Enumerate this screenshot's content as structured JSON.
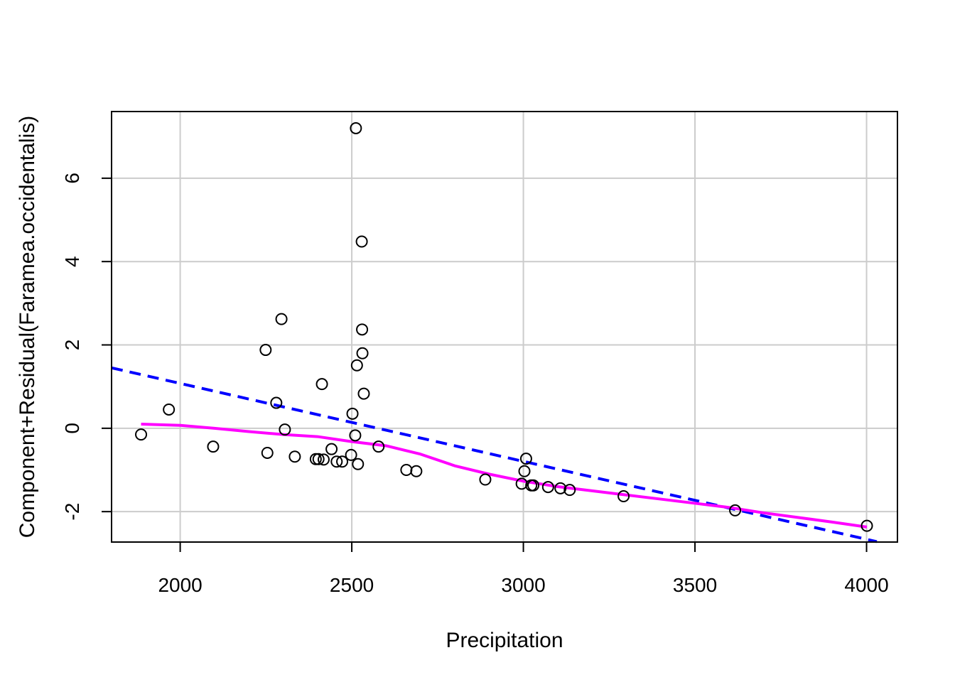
{
  "chart_data": {
    "type": "scatter",
    "xlabel": "Precipitation",
    "ylabel": "Component+Residual(Faramea.occidentalis)",
    "xlim": [
      1800,
      4090
    ],
    "ylim": [
      -2.73,
      7.6
    ],
    "xticks": [
      2000,
      2500,
      3000,
      3500,
      4000
    ],
    "yticks": [
      -2,
      0,
      2,
      4,
      6
    ],
    "grid": true,
    "points": {
      "x": [
        1886,
        1967,
        2096,
        2249,
        2254,
        2280,
        2295,
        2305,
        2334,
        2395,
        2403,
        2413,
        2418,
        2441,
        2456,
        2472,
        2498,
        2502,
        2510,
        2512,
        2515,
        2518,
        2529,
        2530,
        2531,
        2535,
        2578,
        2659,
        2688,
        2889,
        2995,
        3003,
        3008,
        3023,
        3029,
        3072,
        3108,
        3135,
        3292,
        3617,
        4001
      ],
      "y": [
        -0.15,
        0.45,
        -0.44,
        1.88,
        -0.59,
        0.61,
        2.62,
        -0.03,
        -0.68,
        -0.74,
        -0.74,
        1.06,
        -0.75,
        -0.5,
        -0.8,
        -0.8,
        -0.64,
        0.35,
        -0.17,
        7.2,
        1.51,
        -0.86,
        4.48,
        2.37,
        1.8,
        0.83,
        -0.44,
        -1.0,
        -1.03,
        -1.23,
        -1.33,
        -1.03,
        -0.73,
        -1.37,
        -1.37,
        -1.41,
        -1.44,
        -1.48,
        -1.63,
        -1.97,
        -2.34
      ]
    },
    "lines": [
      {
        "style": "dashed",
        "color": "#0000ff",
        "x": [
          1800,
          4030
        ],
        "y": [
          1.45,
          -2.72
        ]
      },
      {
        "style": "solid",
        "color": "#ff00ff",
        "x": [
          1886,
          2000,
          2100,
          2200,
          2300,
          2400,
          2500,
          2600,
          2700,
          2800,
          2900,
          3000,
          3100,
          3200,
          3300,
          3400,
          3500,
          3600,
          3700,
          3800,
          3900,
          4001
        ],
        "y": [
          0.1,
          0.07,
          0.0,
          -0.08,
          -0.15,
          -0.2,
          -0.32,
          -0.42,
          -0.62,
          -0.9,
          -1.1,
          -1.27,
          -1.4,
          -1.5,
          -1.6,
          -1.7,
          -1.8,
          -1.9,
          -2.03,
          -2.14,
          -2.25,
          -2.37
        ]
      }
    ],
    "colors": {
      "grid": "#cccccc",
      "points": "#000000",
      "linear_fit": "#0000ff",
      "smooth_fit": "#ff00ff"
    }
  }
}
